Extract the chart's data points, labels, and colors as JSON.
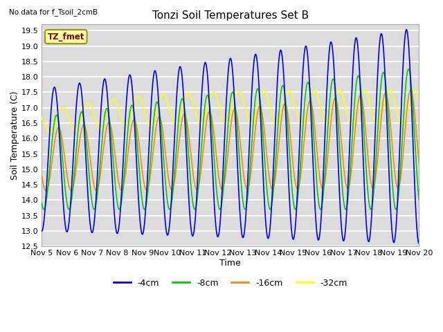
{
  "title": "Tonzi Soil Temperatures Set B",
  "xlabel": "Time",
  "ylabel": "Soil Temperature (C)",
  "note": "No data for f_Tsoil_2cmB",
  "legend_label": "TZ_fmet",
  "ylim": [
    12.5,
    19.7
  ],
  "xlim": [
    0,
    360
  ],
  "background_color": "#dcdcdc",
  "grid_color": "#ffffff",
  "colors": {
    "-4cm": "#0000ee",
    "-8cm": "#00cc00",
    "-16cm": "#ff8800",
    "-32cm": "#ffff00"
  },
  "x_tick_labels": [
    "Nov 5",
    "Nov 6",
    "Nov 7",
    "Nov 8",
    "Nov 9",
    "Nov 10",
    "Nov 11",
    "Nov 12",
    "Nov 13",
    "Nov 14",
    "Nov 15",
    "Nov 16",
    "Nov 17",
    "Nov 18",
    "Nov 19",
    "Nov 20"
  ],
  "x_tick_positions": [
    0,
    24,
    48,
    72,
    96,
    120,
    144,
    168,
    192,
    216,
    240,
    264,
    288,
    312,
    336,
    360
  ],
  "yticks": [
    12.5,
    13.0,
    13.5,
    14.0,
    14.5,
    15.0,
    15.5,
    16.0,
    16.5,
    17.0,
    17.5,
    18.0,
    18.5,
    19.0,
    19.5
  ]
}
